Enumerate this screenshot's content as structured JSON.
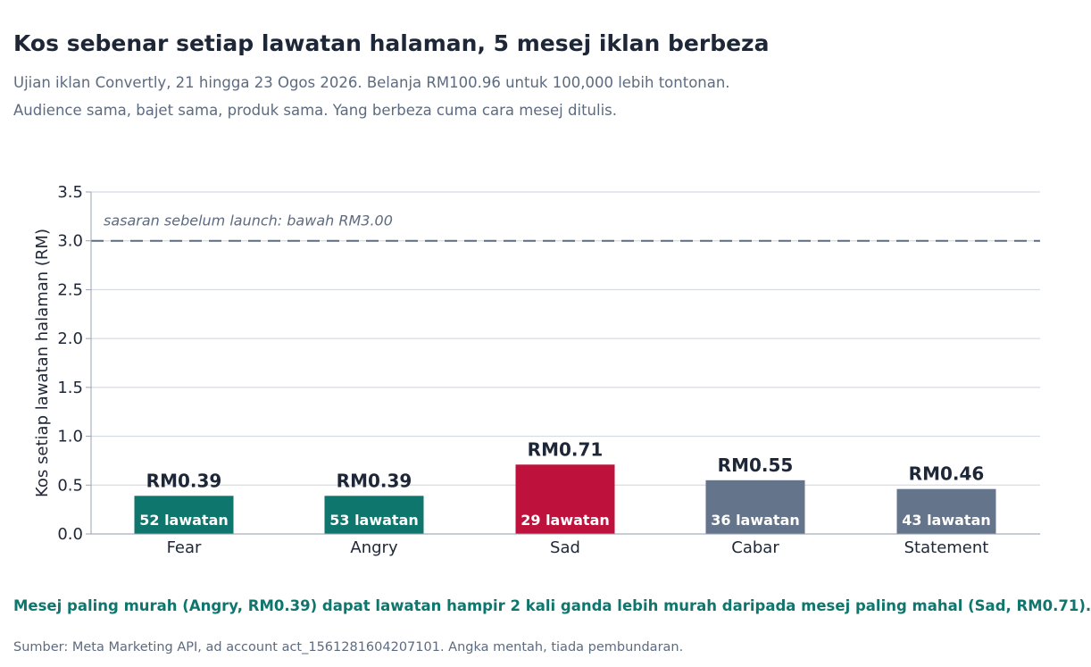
{
  "header": {
    "title": "Kos sebenar setiap lawatan halaman, 5 mesej iklan berbeza",
    "subtitle_line1": "Ujian iklan Convertly, 21 hingga 23 Ogos 2026. Belanja RM100.96 untuk 100,000 lebih tontonan.",
    "subtitle_line2": "Audience sama, bajet sama, produk sama. Yang berbeza cuma cara mesej ditulis."
  },
  "footer": {
    "takeaway": "Mesej paling murah (Angry, RM0.39) dapat lawatan hampir 2 kali ganda lebih murah daripada mesej paling mahal (Sad, RM0.71).",
    "source": "Sumber: Meta Marketing API, ad account act_1561281604207101. Angka mentah, tiada pembundaran."
  },
  "colors": {
    "teal": "#0f766e",
    "crimson": "#be123c",
    "slate": "#64748b",
    "grid": "#d6dbe3",
    "text_dark": "#1e2737",
    "text_muted": "#5d6b80",
    "target_line": "#5d6b80"
  },
  "chart_data": {
    "type": "bar",
    "title": "Kos sebenar setiap lawatan halaman, 5 mesej iklan berbeza",
    "ylabel": "Kos setiap lawatan halaman (RM)",
    "xlabel": "",
    "ylim": [
      0,
      3.5
    ],
    "yticks": [
      "0.0",
      "0.5",
      "1.0",
      "1.5",
      "2.0",
      "2.5",
      "3.0",
      "3.5"
    ],
    "grid": true,
    "categories": [
      "Fear",
      "Angry",
      "Sad",
      "Cabar",
      "Statement"
    ],
    "values": [
      0.39,
      0.39,
      0.71,
      0.55,
      0.46
    ],
    "value_labels": [
      "RM0.39",
      "RM0.39",
      "RM0.71",
      "RM0.55",
      "RM0.46"
    ],
    "inner_labels": [
      "52 lawatan",
      "53 lawatan",
      "29 lawatan",
      "36 lawatan",
      "43 lawatan"
    ],
    "bar_colors": [
      "#0f766e",
      "#0f766e",
      "#be123c",
      "#64748b",
      "#64748b"
    ],
    "reference_line": {
      "value": 3.0,
      "label": "sasaran sebelum launch: bawah RM3.00",
      "style": "dashed"
    }
  }
}
